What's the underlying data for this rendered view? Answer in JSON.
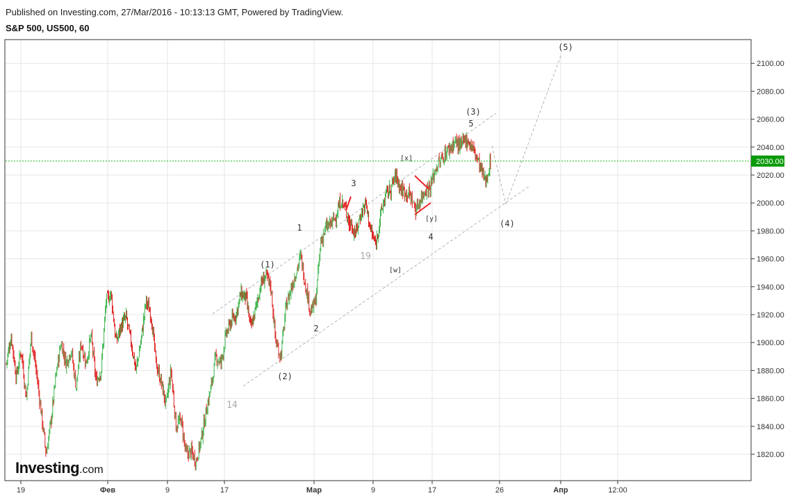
{
  "header": {
    "published": "Published on Investing.com, 27/Mar/2016 - 10:13:13 GMT, Powered by TradingView.",
    "title": "S&P 500, US500, 60"
  },
  "logo": {
    "text": "Investing",
    "suffix": ".com"
  },
  "colors": {
    "up": "#3cb44b",
    "down": "#e02020",
    "grid": "#e6e6e6",
    "current_price_line": "#14b814",
    "current_price_badge": "#0a9a0a",
    "channel_line": "#b4b4b4",
    "wave_marker": "#ee2222"
  },
  "chart_data": {
    "type": "candlestick",
    "symbol": "S&P 500, US500, 60",
    "timeframe": "60",
    "y_axis": {
      "range": [
        1805,
        2115
      ],
      "ticks": [
        "2100.00",
        "2080.00",
        "2060.00",
        "2040.00",
        "2020.00",
        "2000.00",
        "1980.00",
        "1960.00",
        "1940.00",
        "1920.00",
        "1900.00",
        "1880.00",
        "1860.00",
        "1840.00",
        "1820.00"
      ]
    },
    "x_axis": {
      "ticks": [
        {
          "label": "19"
        },
        {
          "label": "Фев"
        },
        {
          "label": "9"
        },
        {
          "label": "17"
        },
        {
          "label": "Мар"
        },
        {
          "label": "9"
        },
        {
          "label": "17"
        },
        {
          "label": "26"
        },
        {
          "label": "Апр"
        },
        {
          "label": "12:00"
        }
      ]
    },
    "current_price": "2030.00",
    "price_path": [
      1885,
      1905,
      1875,
      1895,
      1860,
      1905,
      1880,
      1850,
      1820,
      1845,
      1878,
      1900,
      1885,
      1895,
      1868,
      1900,
      1885,
      1905,
      1872,
      1880,
      1930,
      1935,
      1900,
      1912,
      1918,
      1900,
      1880,
      1902,
      1930,
      1920,
      1885,
      1872,
      1855,
      1880,
      1840,
      1845,
      1820,
      1822,
      1815,
      1830,
      1850,
      1868,
      1890,
      1885,
      1905,
      1915,
      1920,
      1935,
      1932,
      1910,
      1925,
      1942,
      1948,
      1940,
      1900,
      1890,
      1925,
      1938,
      1950,
      1962,
      1940,
      1922,
      1930,
      1972,
      1982,
      1985,
      1990,
      2002,
      1995,
      1985,
      1978,
      1992,
      2000,
      1980,
      1970,
      1992,
      2006,
      2010,
      2020,
      2010,
      2008,
      2005,
      1995,
      2003,
      2010,
      2012,
      2025,
      2030,
      2036,
      2040,
      2044,
      2040,
      2046,
      2042,
      2035,
      2025,
      2015,
      2030
    ],
    "wave_labels": [
      {
        "text": "(1)"
      },
      {
        "text": "(2)"
      },
      {
        "text": "1"
      },
      {
        "text": "2"
      },
      {
        "text": "3"
      },
      {
        "text": "4"
      },
      {
        "text": "5"
      },
      {
        "text": "(3)"
      },
      {
        "text": "(4)"
      },
      {
        "text": "(5)"
      },
      {
        "text": "[x]"
      },
      {
        "text": "[y]"
      },
      {
        "text": "[w]"
      },
      {
        "text": "14"
      },
      {
        "text": "19"
      }
    ]
  }
}
